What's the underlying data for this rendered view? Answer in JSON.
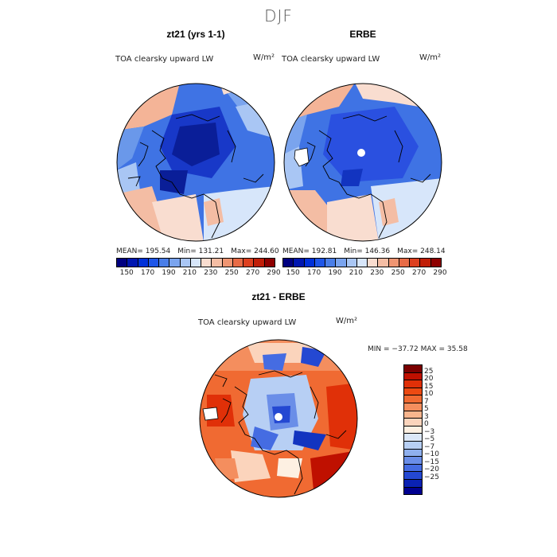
{
  "main_title": "DJF",
  "panels": [
    {
      "title": "zt21 (yrs 1-1)",
      "variable": "TOA clearsky upward LW",
      "units": "W/m²",
      "stats": {
        "mean": "MEAN= 195.54",
        "min": "Min= 131.21",
        "max": "Max= 244.60"
      }
    },
    {
      "title": "ERBE",
      "variable": "TOA clearsky upward LW",
      "units": "W/m²",
      "stats": {
        "mean": "MEAN= 192.81",
        "min": "Min= 146.36",
        "max": "Max= 248.14"
      }
    },
    {
      "title": "zt21 - ERBE",
      "variable": "TOA clearsky upward LW",
      "units": "W/m²",
      "stats": {
        "minmax": "MIN = −37.72 MAX =  35.58"
      }
    }
  ],
  "colorbar_abs": {
    "colors": [
      "#000080",
      "#0016b0",
      "#0030d8",
      "#1f56e8",
      "#4a7ee8",
      "#7aa4ee",
      "#a9c6f4",
      "#d7e6fa",
      "#f9ddd0",
      "#f4bda4",
      "#ef9572",
      "#e86b46",
      "#dd4020",
      "#c01e08",
      "#8e0000"
    ],
    "ticks": [
      "150",
      "170",
      "190",
      "210",
      "230",
      "250",
      "270",
      "290"
    ]
  },
  "colorbar_diff": {
    "colors": [
      "#7b0000",
      "#bf1000",
      "#e03008",
      "#ec4a12",
      "#f06a32",
      "#f48e5e",
      "#f8b58d",
      "#fbd4bc",
      "#fdf0e2",
      "#dce8f8",
      "#b7cff4",
      "#8fb0ee",
      "#6a8ee8",
      "#456ce2",
      "#2448d2",
      "#0a22b4",
      "#000090"
    ],
    "ticks": [
      "25",
      "20",
      "15",
      "10",
      "7",
      "5",
      "3",
      "0",
      "−3",
      "−5",
      "−7",
      "−10",
      "−15",
      "−20",
      "−25"
    ]
  },
  "colors": {
    "land_outline": "#000000",
    "missing": "#ffffff"
  }
}
